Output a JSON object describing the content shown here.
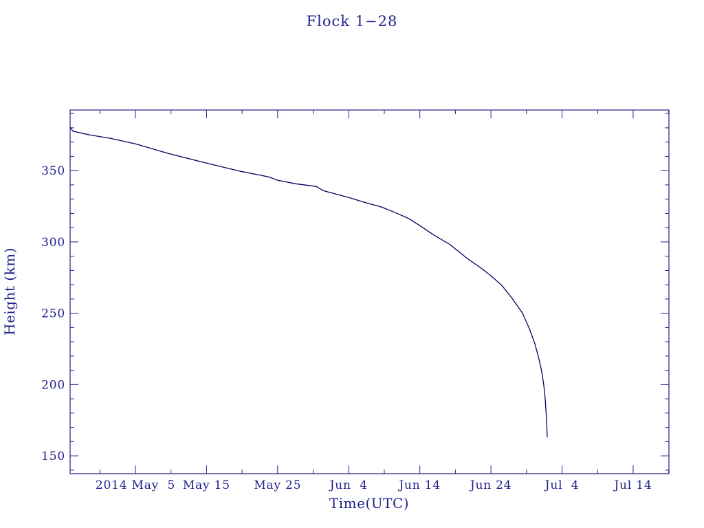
{
  "chart_data": {
    "type": "line",
    "title": "Flock 1−28",
    "xlabel": "Time(UTC)",
    "ylabel": "Height (km)",
    "x_scale": "time",
    "xlim": [
      "2014-04-25T19:36",
      "2014-07-19T00:45"
    ],
    "ylim": [
      137.5,
      392.5
    ],
    "grid": false,
    "legend": "none",
    "x_ticks": [
      {
        "value": "2014-05-05",
        "label": "2014 May  5"
      },
      {
        "value": "2014-05-15",
        "label": "May 15"
      },
      {
        "value": "2014-05-25",
        "label": "May 25"
      },
      {
        "value": "2014-06-04",
        "label": "Jun  4"
      },
      {
        "value": "2014-06-14",
        "label": "Jun 14"
      },
      {
        "value": "2014-06-24",
        "label": "Jun 24"
      },
      {
        "value": "2014-07-04",
        "label": "Jul  4"
      },
      {
        "value": "2014-07-14",
        "label": "Jul 14"
      }
    ],
    "y_ticks": [
      {
        "value": 150,
        "label": "150"
      },
      {
        "value": 200,
        "label": "200"
      },
      {
        "value": 250,
        "label": "250"
      },
      {
        "value": 300,
        "label": "300"
      },
      {
        "value": 350,
        "label": "350"
      }
    ],
    "colors": {
      "background": "#ffffff",
      "text": "#1e1e8c",
      "axes": "#1e1e8c",
      "line": "#00005e"
    },
    "series": [
      {
        "x": [
          "2014-04-25T19:36",
          "2014-04-26T05:00",
          "2014-04-28T12:30",
          "2014-05-01T10:10",
          "2014-05-05T00:00",
          "2014-05-09T15:20",
          "2014-05-15T00:00",
          "2014-05-19T19:00",
          "2014-05-23T16:00",
          "2014-05-25T00:00",
          "2014-05-27T12:40",
          "2014-05-30T10:20",
          "2014-05-31T09:20",
          "2014-06-04T00:00",
          "2014-06-06T04:50",
          "2014-06-08T14:40",
          "2014-06-10T13:00",
          "2014-06-12T11:30",
          "2014-06-14T00:00",
          "2014-06-15T20:40",
          "2014-06-18T06:40",
          "2014-06-20T16:50",
          "2014-06-22T15:10",
          "2014-06-24T00:00",
          "2014-06-25T12:50",
          "2014-06-26T23:30",
          "2014-06-28T10:20",
          "2014-06-29T09:40",
          "2014-06-30T04:10",
          "2014-06-30T18:00",
          "2014-07-01T03:20",
          "2014-07-01T10:20",
          "2014-07-01T15:00",
          "2014-07-01T19:40",
          "2014-07-01T22:00"
        ],
        "y": [
          380.4,
          377.6,
          375.1,
          372.7,
          368.8,
          362.0,
          355.3,
          349.5,
          345.7,
          343.3,
          340.8,
          338.9,
          336.0,
          331.2,
          327.8,
          324.5,
          320.6,
          316.3,
          311.4,
          305.2,
          298.0,
          288.3,
          281.6,
          276.3,
          269.5,
          260.4,
          250.2,
          239.2,
          228.6,
          218.0,
          209.3,
          199.6,
          190.0,
          175.5,
          163.0
        ]
      }
    ]
  }
}
